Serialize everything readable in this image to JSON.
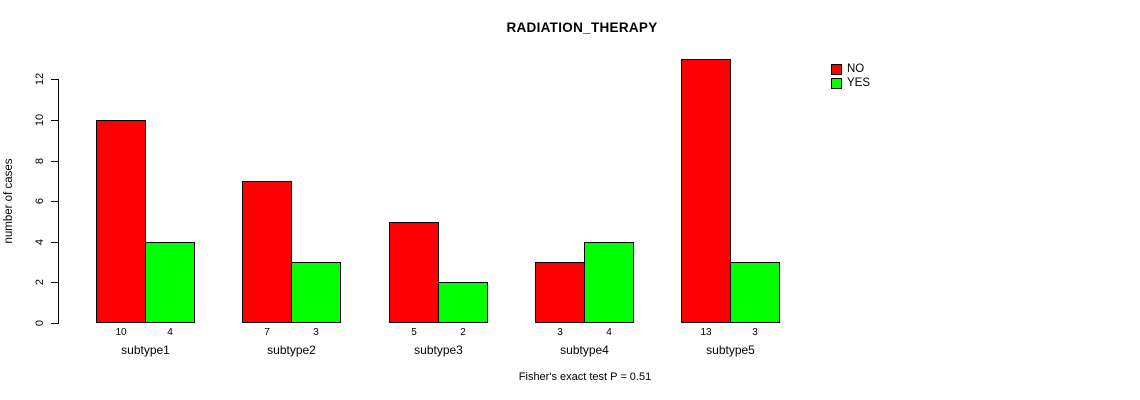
{
  "chart_data": {
    "type": "bar",
    "title": "RADIATION_THERAPY",
    "xlabel": "",
    "ylabel": "number of cases",
    "categories": [
      "subtype1",
      "subtype2",
      "subtype3",
      "subtype4",
      "subtype5"
    ],
    "series": [
      {
        "name": "NO",
        "color": "#ff0000",
        "values": [
          10,
          7,
          5,
          3,
          13
        ]
      },
      {
        "name": "YES",
        "color": "#00ff00",
        "values": [
          4,
          3,
          2,
          4,
          3
        ]
      }
    ],
    "bar_value_labels": [
      [
        10,
        4
      ],
      [
        7,
        3
      ],
      [
        5,
        2
      ],
      [
        3,
        4
      ],
      [
        13,
        3
      ]
    ],
    "yticks": [
      0,
      2,
      4,
      6,
      8,
      10,
      12
    ],
    "ylim": [
      0,
      13
    ],
    "grid": false,
    "legend_position": "top-right",
    "bar_border_color": "#000000",
    "background_color": "#ffffff",
    "annotation": "Fisher's exact test P = 0.51"
  }
}
